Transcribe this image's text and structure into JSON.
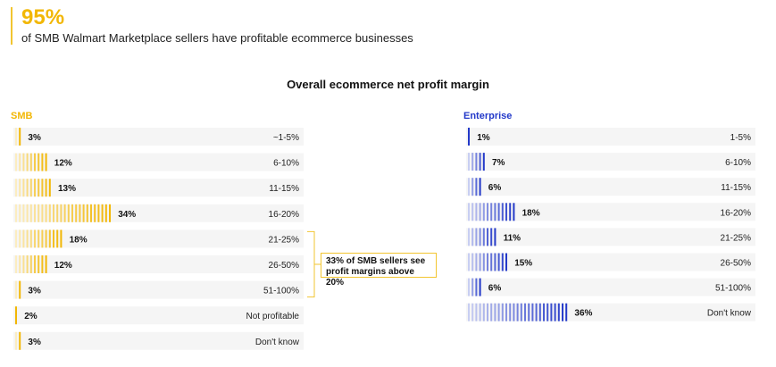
{
  "headline": {
    "value": "95%",
    "text": "of SMB Walmart Marketplace sellers have profitable ecommerce businesses"
  },
  "chart_data": {
    "type": "bar",
    "title": "Overall ecommerce net profit margin",
    "panels": [
      {
        "name": "SMB",
        "color": "#f2b705",
        "categories": [
          "~1-5%",
          "6-10%",
          "11-15%",
          "16-20%",
          "21-25%",
          "26-50%",
          "51-100%",
          "Not profitable",
          "Don't know"
        ],
        "value_labels": [
          "3%",
          "12%",
          "13%",
          "34%",
          "18%",
          "12%",
          "3%",
          "2%",
          "3%"
        ],
        "values": [
          3,
          12,
          13,
          34,
          18,
          12,
          3,
          2,
          3
        ]
      },
      {
        "name": "Enterprise",
        "color": "#2339c9",
        "categories": [
          "1-5%",
          "6-10%",
          "11-15%",
          "16-20%",
          "21-25%",
          "26-50%",
          "51-100%",
          "Don't know"
        ],
        "value_labels": [
          "1%",
          "7%",
          "6%",
          "18%",
          "11%",
          "15%",
          "6%",
          "36%"
        ],
        "values": [
          1,
          7,
          6,
          18,
          11,
          15,
          6,
          36
        ]
      }
    ],
    "annotation": {
      "highlight": "33%",
      "text": " of SMB sellers see profit margins above 20%"
    }
  }
}
